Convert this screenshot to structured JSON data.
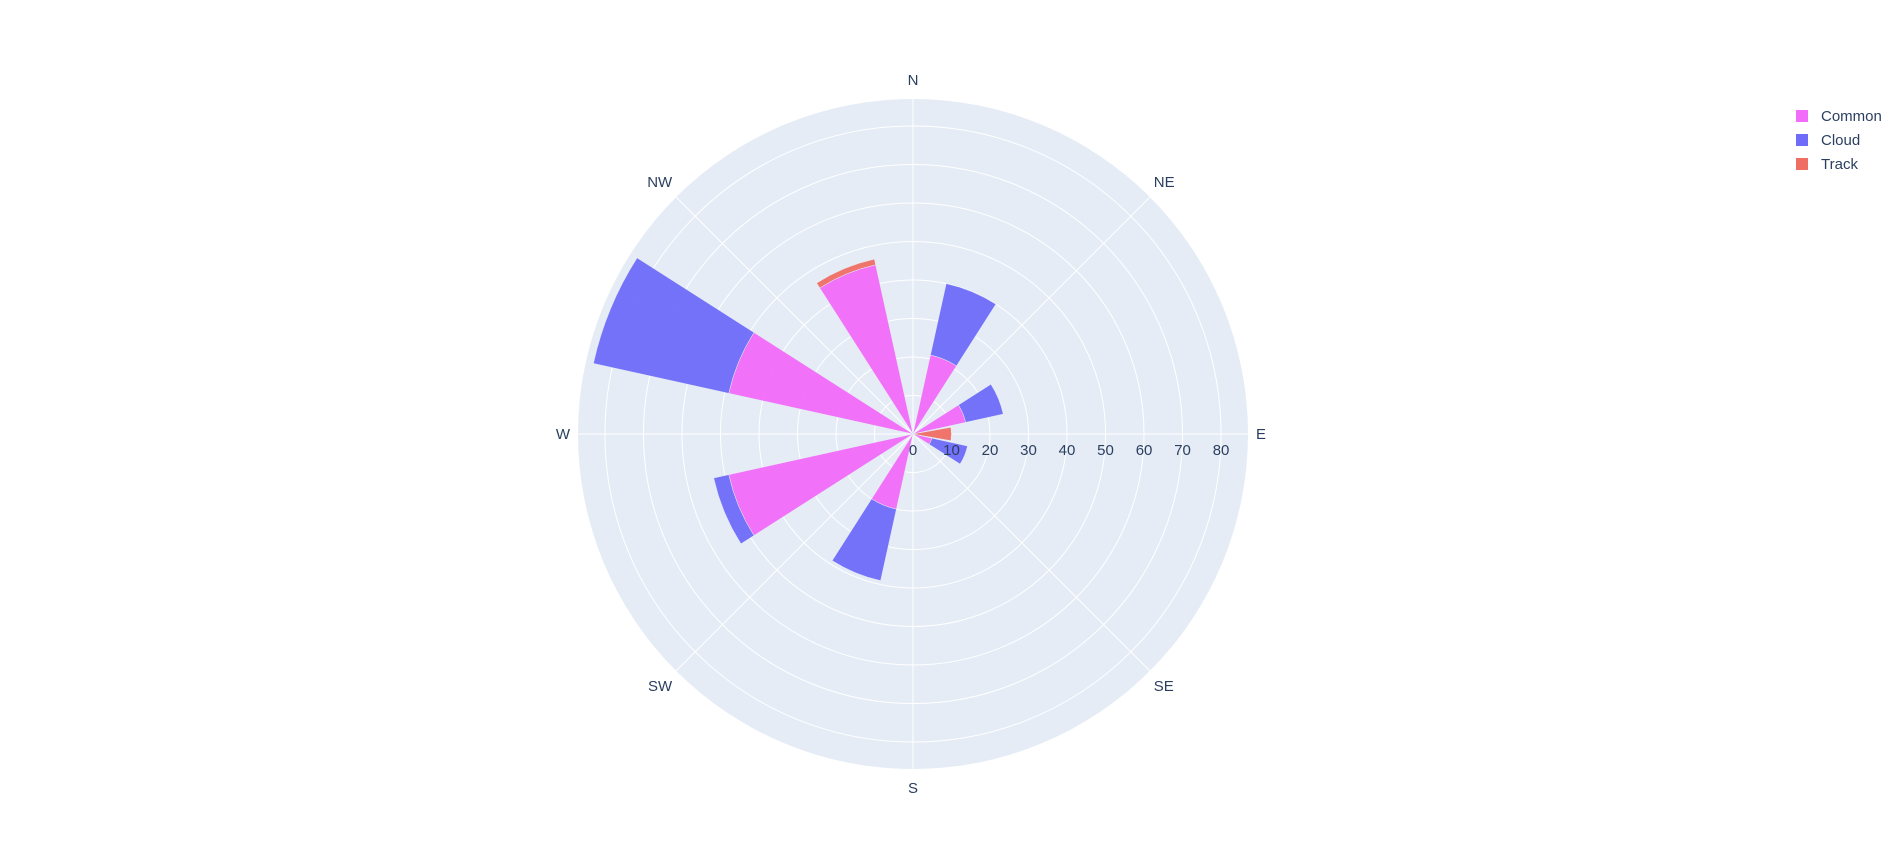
{
  "chart_data": {
    "type": "barpolar",
    "title": "",
    "direction_labels": [
      "N",
      "NE",
      "E",
      "SE",
      "S",
      "SW",
      "W",
      "NW"
    ],
    "bar_directions": [
      "N",
      "NNE",
      "NE",
      "ENE",
      "E",
      "ESE",
      "SE",
      "SSE",
      "S",
      "SSW",
      "SW",
      "WSW",
      "W",
      "WNW",
      "NW",
      "NNW"
    ],
    "radial_range": [
      0,
      87
    ],
    "radial_ticks": [
      0,
      10,
      20,
      30,
      40,
      50,
      60,
      70,
      80
    ],
    "barmode": "stack",
    "legend_position": "top-right",
    "series": [
      {
        "name": "Common",
        "color": "#f16cf9",
        "values": [
          0,
          21,
          0,
          14,
          0,
          0,
          0,
          0,
          0,
          20,
          0,
          49,
          0,
          49,
          0,
          45
        ]
      },
      {
        "name": "Cloud",
        "color": "#6e6cf9",
        "values": [
          0,
          19,
          0,
          10,
          0,
          0,
          0,
          0,
          0,
          19,
          0,
          4,
          0,
          36,
          0,
          0
        ]
      },
      {
        "name": "Track",
        "color": "#ef6e64",
        "values": [
          0,
          0,
          0,
          0,
          10,
          0,
          0,
          0,
          0,
          0,
          0,
          0,
          0,
          0,
          0,
          1.5
        ]
      }
    ],
    "extra_bars": [
      {
        "direction": "ESE",
        "series": "Common",
        "value": 5
      },
      {
        "direction": "ESE",
        "series": "Cloud",
        "value": 9.5
      }
    ]
  }
}
